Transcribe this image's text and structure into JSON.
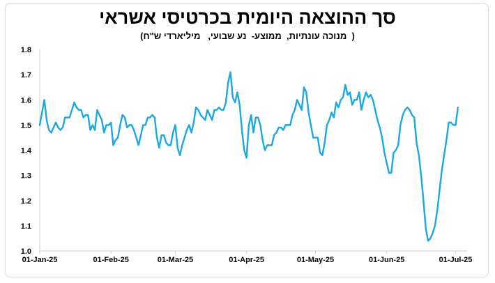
{
  "chart_data": {
    "type": "line",
    "title": "סך ההוצאה היומית בכרטיסי אשראי",
    "subtitle": "(  מנוכה עונתיות,  ממוצע-  נע שבועי,   מיליארדי ש\"ח)",
    "xlabel": "",
    "ylabel": "",
    "ylim": [
      1.0,
      1.8
    ],
    "yticks": [
      1.0,
      1.1,
      1.2,
      1.3,
      1.4,
      1.5,
      1.6,
      1.7,
      1.8
    ],
    "xlim": [
      "2025-01-01",
      "2025-07-06"
    ],
    "xticks": [
      {
        "date": "2025-01-01",
        "label": "01-Jan-25"
      },
      {
        "date": "2025-02-01",
        "label": "01-Feb-25"
      },
      {
        "date": "2025-03-01",
        "label": "01-Mar-25"
      },
      {
        "date": "2025-04-01",
        "label": "01-Apr-25"
      },
      {
        "date": "2025-05-01",
        "label": "01-May-25"
      },
      {
        "date": "2025-06-01",
        "label": "01-Jun-25"
      },
      {
        "date": "2025-07-01",
        "label": "01-Jul-25"
      }
    ],
    "grid": false,
    "legend": "none",
    "color": "#1ba8e0",
    "series": [
      {
        "points": [
          [
            "2025-01-01",
            1.5
          ],
          [
            "2025-01-02",
            1.55
          ],
          [
            "2025-01-03",
            1.6
          ],
          [
            "2025-01-04",
            1.52
          ],
          [
            "2025-01-05",
            1.48
          ],
          [
            "2025-01-06",
            1.47
          ],
          [
            "2025-01-07",
            1.49
          ],
          [
            "2025-01-08",
            1.51
          ],
          [
            "2025-01-09",
            1.49
          ],
          [
            "2025-01-10",
            1.48
          ],
          [
            "2025-01-11",
            1.49
          ],
          [
            "2025-01-12",
            1.53
          ],
          [
            "2025-01-13",
            1.53
          ],
          [
            "2025-01-14",
            1.53
          ],
          [
            "2025-01-15",
            1.56
          ],
          [
            "2025-01-16",
            1.59
          ],
          [
            "2025-01-17",
            1.57
          ],
          [
            "2025-01-18",
            1.56
          ],
          [
            "2025-01-19",
            1.56
          ],
          [
            "2025-01-20",
            1.53
          ],
          [
            "2025-01-21",
            1.54
          ],
          [
            "2025-01-22",
            1.54
          ],
          [
            "2025-01-23",
            1.48
          ],
          [
            "2025-01-24",
            1.5
          ],
          [
            "2025-01-25",
            1.48
          ],
          [
            "2025-01-26",
            1.56
          ],
          [
            "2025-01-27",
            1.54
          ],
          [
            "2025-01-28",
            1.52
          ],
          [
            "2025-01-29",
            1.47
          ],
          [
            "2025-01-30",
            1.5
          ],
          [
            "2025-01-31",
            1.5
          ],
          [
            "2025-02-01",
            1.51
          ],
          [
            "2025-02-02",
            1.42
          ],
          [
            "2025-02-03",
            1.44
          ],
          [
            "2025-02-04",
            1.45
          ],
          [
            "2025-02-05",
            1.5
          ],
          [
            "2025-02-06",
            1.54
          ],
          [
            "2025-02-07",
            1.53
          ],
          [
            "2025-02-08",
            1.49
          ],
          [
            "2025-02-09",
            1.5
          ],
          [
            "2025-02-10",
            1.5
          ],
          [
            "2025-02-11",
            1.48
          ],
          [
            "2025-02-12",
            1.45
          ],
          [
            "2025-02-13",
            1.42
          ],
          [
            "2025-02-14",
            1.46
          ],
          [
            "2025-02-15",
            1.5
          ],
          [
            "2025-02-16",
            1.5
          ],
          [
            "2025-02-17",
            1.53
          ],
          [
            "2025-02-18",
            1.53
          ],
          [
            "2025-02-19",
            1.54
          ],
          [
            "2025-02-20",
            1.53
          ],
          [
            "2025-02-21",
            1.45
          ],
          [
            "2025-02-22",
            1.41
          ],
          [
            "2025-02-23",
            1.46
          ],
          [
            "2025-02-24",
            1.46
          ],
          [
            "2025-02-25",
            1.43
          ],
          [
            "2025-02-26",
            1.42
          ],
          [
            "2025-02-27",
            1.42
          ],
          [
            "2025-02-28",
            1.47
          ],
          [
            "2025-03-01",
            1.5
          ],
          [
            "2025-03-02",
            1.41
          ],
          [
            "2025-03-03",
            1.38
          ],
          [
            "2025-03-04",
            1.42
          ],
          [
            "2025-03-05",
            1.45
          ],
          [
            "2025-03-06",
            1.48
          ],
          [
            "2025-03-07",
            1.5
          ],
          [
            "2025-03-08",
            1.47
          ],
          [
            "2025-03-09",
            1.51
          ],
          [
            "2025-03-10",
            1.57
          ],
          [
            "2025-03-11",
            1.56
          ],
          [
            "2025-03-12",
            1.54
          ],
          [
            "2025-03-13",
            1.53
          ],
          [
            "2025-03-14",
            1.52
          ],
          [
            "2025-03-15",
            1.56
          ],
          [
            "2025-03-16",
            1.54
          ],
          [
            "2025-03-17",
            1.52
          ],
          [
            "2025-03-18",
            1.56
          ],
          [
            "2025-03-19",
            1.56
          ],
          [
            "2025-03-20",
            1.57
          ],
          [
            "2025-03-21",
            1.56
          ],
          [
            "2025-03-22",
            1.56
          ],
          [
            "2025-03-23",
            1.59
          ],
          [
            "2025-03-24",
            1.67
          ],
          [
            "2025-03-25",
            1.71
          ],
          [
            "2025-03-26",
            1.61
          ],
          [
            "2025-03-27",
            1.59
          ],
          [
            "2025-03-28",
            1.63
          ],
          [
            "2025-03-29",
            1.58
          ],
          [
            "2025-03-30",
            1.48
          ],
          [
            "2025-03-31",
            1.4
          ],
          [
            "2025-04-01",
            1.37
          ],
          [
            "2025-04-02",
            1.5
          ],
          [
            "2025-04-03",
            1.54
          ],
          [
            "2025-04-04",
            1.47
          ],
          [
            "2025-04-05",
            1.53
          ],
          [
            "2025-04-06",
            1.53
          ],
          [
            "2025-04-07",
            1.5
          ],
          [
            "2025-04-08",
            1.44
          ],
          [
            "2025-04-09",
            1.4
          ],
          [
            "2025-04-10",
            1.42
          ],
          [
            "2025-04-11",
            1.42
          ],
          [
            "2025-04-12",
            1.42
          ],
          [
            "2025-04-13",
            1.46
          ],
          [
            "2025-04-14",
            1.47
          ],
          [
            "2025-04-15",
            1.49
          ],
          [
            "2025-04-16",
            1.49
          ],
          [
            "2025-04-17",
            1.48
          ],
          [
            "2025-04-18",
            1.5
          ],
          [
            "2025-04-19",
            1.5
          ],
          [
            "2025-04-20",
            1.5
          ],
          [
            "2025-04-21",
            1.54
          ],
          [
            "2025-04-22",
            1.56
          ],
          [
            "2025-04-23",
            1.6
          ],
          [
            "2025-04-24",
            1.58
          ],
          [
            "2025-04-25",
            1.56
          ],
          [
            "2025-04-26",
            1.65
          ],
          [
            "2025-04-27",
            1.63
          ],
          [
            "2025-04-28",
            1.55
          ],
          [
            "2025-04-29",
            1.5
          ],
          [
            "2025-04-30",
            1.45
          ],
          [
            "2025-05-01",
            1.45
          ],
          [
            "2025-05-02",
            1.45
          ],
          [
            "2025-05-03",
            1.39
          ],
          [
            "2025-05-04",
            1.38
          ],
          [
            "2025-05-05",
            1.43
          ],
          [
            "2025-05-06",
            1.5
          ],
          [
            "2025-05-07",
            1.52
          ],
          [
            "2025-05-08",
            1.55
          ],
          [
            "2025-05-09",
            1.53
          ],
          [
            "2025-05-10",
            1.59
          ],
          [
            "2025-05-11",
            1.57
          ],
          [
            "2025-05-12",
            1.6
          ],
          [
            "2025-05-13",
            1.61
          ],
          [
            "2025-05-14",
            1.66
          ],
          [
            "2025-05-15",
            1.62
          ],
          [
            "2025-05-16",
            1.63
          ],
          [
            "2025-05-17",
            1.58
          ],
          [
            "2025-05-18",
            1.6
          ],
          [
            "2025-05-19",
            1.6
          ],
          [
            "2025-05-20",
            1.63
          ],
          [
            "2025-05-21",
            1.56
          ],
          [
            "2025-05-22",
            1.6
          ],
          [
            "2025-05-23",
            1.63
          ],
          [
            "2025-05-24",
            1.61
          ],
          [
            "2025-05-25",
            1.62
          ],
          [
            "2025-05-26",
            1.6
          ],
          [
            "2025-05-27",
            1.56
          ],
          [
            "2025-05-28",
            1.52
          ],
          [
            "2025-05-29",
            1.49
          ],
          [
            "2025-05-30",
            1.45
          ],
          [
            "2025-05-31",
            1.39
          ],
          [
            "2025-06-01",
            1.35
          ],
          [
            "2025-06-02",
            1.31
          ],
          [
            "2025-06-03",
            1.31
          ],
          [
            "2025-06-04",
            1.39
          ],
          [
            "2025-06-05",
            1.4
          ],
          [
            "2025-06-06",
            1.42
          ],
          [
            "2025-06-07",
            1.5
          ],
          [
            "2025-06-08",
            1.54
          ],
          [
            "2025-06-09",
            1.56
          ],
          [
            "2025-06-10",
            1.57
          ],
          [
            "2025-06-11",
            1.56
          ],
          [
            "2025-06-12",
            1.54
          ],
          [
            "2025-06-13",
            1.53
          ],
          [
            "2025-06-14",
            1.43
          ],
          [
            "2025-06-15",
            1.38
          ],
          [
            "2025-06-16",
            1.3
          ],
          [
            "2025-06-17",
            1.2
          ],
          [
            "2025-06-18",
            1.09
          ],
          [
            "2025-06-19",
            1.04
          ],
          [
            "2025-06-20",
            1.05
          ],
          [
            "2025-06-21",
            1.07
          ],
          [
            "2025-06-22",
            1.1
          ],
          [
            "2025-06-23",
            1.16
          ],
          [
            "2025-06-24",
            1.24
          ],
          [
            "2025-06-25",
            1.32
          ],
          [
            "2025-06-26",
            1.38
          ],
          [
            "2025-06-27",
            1.44
          ],
          [
            "2025-06-28",
            1.51
          ],
          [
            "2025-06-29",
            1.51
          ],
          [
            "2025-06-30",
            1.5
          ],
          [
            "2025-07-01",
            1.5
          ],
          [
            "2025-07-02",
            1.57
          ]
        ]
      }
    ]
  }
}
